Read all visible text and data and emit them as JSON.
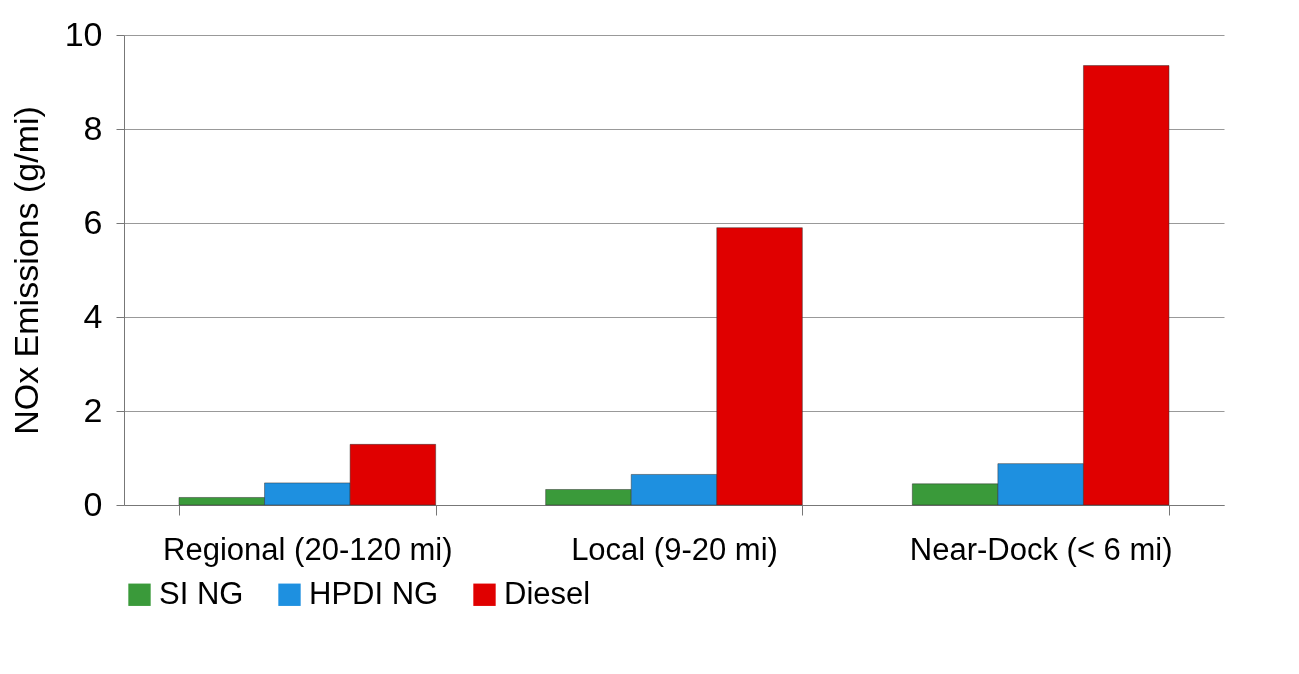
{
  "chart_data": {
    "type": "bar",
    "ylabel": "NOx  Emissions (g/mi)",
    "categories": [
      "Regional (20-120 mi)",
      "Local (9-20 mi)",
      "Near-Dock (< 6 mi)"
    ],
    "series": [
      {
        "name": "SI NG",
        "color": "#3a9a3a",
        "values": [
          0.16,
          0.33,
          0.45
        ]
      },
      {
        "name": "HPDI NG",
        "color": "#1e90e0",
        "values": [
          0.47,
          0.65,
          0.88
        ]
      },
      {
        "name": "Diesel",
        "color": "#e00000",
        "values": [
          1.29,
          5.9,
          9.35
        ]
      }
    ],
    "ylim": [
      0,
      10
    ],
    "yticks": [
      0,
      2,
      4,
      6,
      8,
      10
    ],
    "grid": "y",
    "legend": "bottom"
  }
}
